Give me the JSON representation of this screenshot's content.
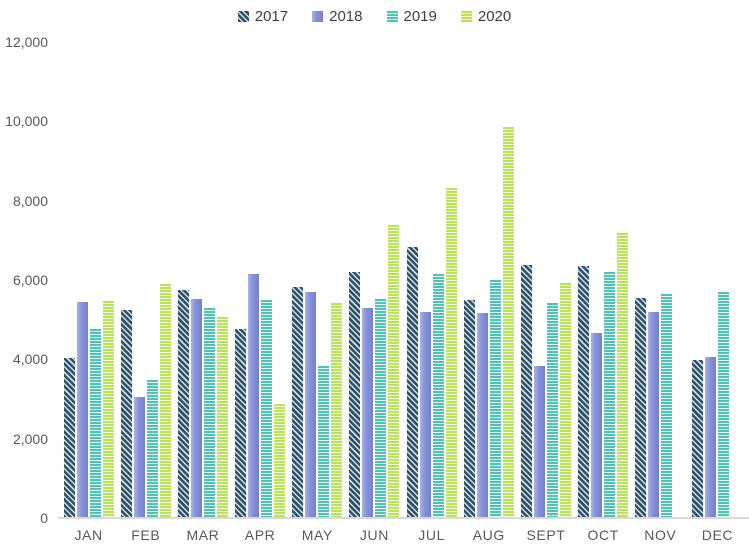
{
  "chart_data": {
    "type": "bar",
    "title": "",
    "xlabel": "",
    "ylabel": "",
    "categories": [
      "JAN",
      "FEB",
      "MAR",
      "APR",
      "MAY",
      "JUN",
      "JUL",
      "AUG",
      "SEPT",
      "OCT",
      "NOV",
      "DEC"
    ],
    "series": [
      {
        "name": "2017",
        "pattern": "diagonal",
        "color": "#2f5166",
        "alt_color": "#cfdfe8",
        "values": [
          4040,
          5250,
          5760,
          4760,
          5830,
          6210,
          6840,
          5500,
          6370,
          6360,
          5550,
          3990
        ]
      },
      {
        "name": "2018",
        "pattern": "gradient",
        "color": "#8793d9",
        "alt_color": "#aab3e6",
        "edge_color": "#7280cf",
        "values": [
          5450,
          3050,
          5510,
          6150,
          5710,
          5300,
          5190,
          5180,
          3820,
          4660,
          5200,
          4050
        ]
      },
      {
        "name": "2019",
        "pattern": "horizontal",
        "color": "#4cc3b3",
        "alt_color": "#e9f8f4",
        "values": [
          4770,
          3490,
          5290,
          5500,
          3840,
          5530,
          6150,
          6000,
          5430,
          6190,
          5650,
          5700
        ]
      },
      {
        "name": "2020",
        "pattern": "horizontal",
        "color": "#b8e557",
        "alt_color": "#f6fbe4",
        "values": [
          5470,
          5890,
          5070,
          2870,
          5410,
          7380,
          8330,
          9850,
          5920,
          7180,
          null,
          null
        ]
      }
    ],
    "ylim": [
      0,
      12000
    ],
    "ytick_step": 2000,
    "yticks": [
      "0",
      "2,000",
      "4,000",
      "6,000",
      "8,000",
      "10,000",
      "12,000"
    ],
    "grid": false,
    "legend_position": "top",
    "axis_line_color": "#d9d9d9",
    "tick_label_color": "#595959",
    "legend_text_color": "#404040"
  }
}
